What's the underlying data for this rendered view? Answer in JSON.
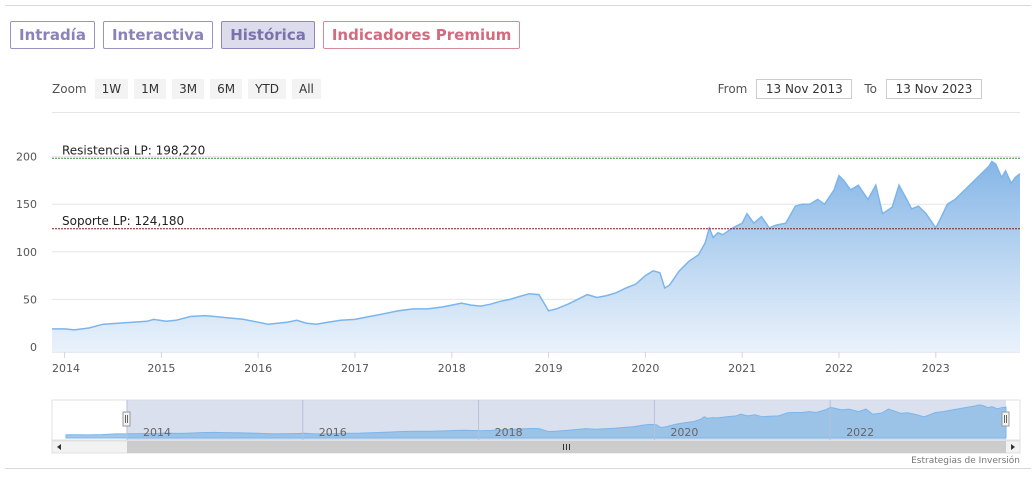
{
  "tabs": [
    {
      "label": "Intradía",
      "active": false
    },
    {
      "label": "Interactiva",
      "active": false
    },
    {
      "label": "Histórica",
      "active": true
    },
    {
      "label": "Indicadores Premium",
      "active": false
    }
  ],
  "zoom": {
    "label": "Zoom",
    "buttons": [
      "1W",
      "1M",
      "3M",
      "6M",
      "YTD",
      "All"
    ]
  },
  "range": {
    "from_label": "From",
    "from_value": "13 Nov 2013",
    "to_label": "To",
    "to_value": "13 Nov 2023"
  },
  "credits": "Estrategias de Inversión",
  "chart_data": {
    "type": "area",
    "x_start": 2013.87,
    "x_end": 2023.87,
    "ylim": [
      0,
      205
    ],
    "yticks": [
      0,
      50,
      100,
      150,
      200
    ],
    "xticks": [
      2014,
      2015,
      2016,
      2017,
      2018,
      2019,
      2020,
      2021,
      2022,
      2023
    ],
    "navigator_ticks": [
      2014,
      2016,
      2018,
      2020,
      2022
    ],
    "grid": true,
    "series": [
      {
        "x": [
          2013.87,
          2014.0,
          2014.1,
          2014.25,
          2014.4,
          2014.55,
          2014.7,
          2014.85,
          2014.92,
          2015.05,
          2015.15,
          2015.3,
          2015.45,
          2015.55,
          2015.65,
          2015.75,
          2015.85,
          2016.0,
          2016.1,
          2016.2,
          2016.3,
          2016.4,
          2016.5,
          2016.6,
          2016.72,
          2016.85,
          2017.0,
          2017.15,
          2017.3,
          2017.45,
          2017.6,
          2017.75,
          2017.9,
          2018.0,
          2018.1,
          2018.2,
          2018.3,
          2018.4,
          2018.5,
          2018.6,
          2018.7,
          2018.8,
          2018.9,
          2019.0,
          2019.08,
          2019.2,
          2019.3,
          2019.4,
          2019.5,
          2019.6,
          2019.7,
          2019.8,
          2019.9,
          2020.0,
          2020.08,
          2020.15,
          2020.2,
          2020.25,
          2020.35,
          2020.45,
          2020.55,
          2020.62,
          2020.66,
          2020.7,
          2020.75,
          2020.8,
          2020.9,
          2021.0,
          2021.05,
          2021.12,
          2021.2,
          2021.28,
          2021.35,
          2021.45,
          2021.55,
          2021.62,
          2021.7,
          2021.78,
          2021.85,
          2021.95,
          2022.0,
          2022.05,
          2022.12,
          2022.2,
          2022.3,
          2022.38,
          2022.45,
          2022.55,
          2022.62,
          2022.7,
          2022.75,
          2022.82,
          2022.9,
          2023.0,
          2023.05,
          2023.12,
          2023.2,
          2023.3,
          2023.4,
          2023.5,
          2023.55,
          2023.58,
          2023.62,
          2023.68,
          2023.72,
          2023.78,
          2023.82,
          2023.87
        ],
        "y": [
          19,
          19,
          18,
          20,
          24,
          25,
          26,
          27,
          29,
          27,
          28,
          32,
          33,
          32,
          31,
          30,
          29,
          26,
          24,
          25,
          26,
          28,
          25,
          24,
          26,
          28,
          29,
          32,
          35,
          38,
          40,
          40,
          42,
          44,
          46,
          44,
          43,
          45,
          48,
          50,
          53,
          56,
          55,
          38,
          40,
          45,
          50,
          55,
          52,
          54,
          57,
          62,
          66,
          75,
          80,
          78,
          62,
          65,
          80,
          90,
          97,
          110,
          125,
          115,
          120,
          118,
          125,
          130,
          140,
          130,
          137,
          125,
          128,
          130,
          148,
          150,
          150,
          155,
          150,
          165,
          180,
          175,
          165,
          170,
          155,
          170,
          140,
          147,
          170,
          155,
          145,
          148,
          140,
          125,
          135,
          150,
          155,
          165,
          175,
          185,
          190,
          195,
          192,
          178,
          185,
          172,
          178,
          182
        ]
      }
    ],
    "reference_lines": [
      {
        "label": "Resistencia LP: 198,220",
        "value": 198.22,
        "color": "#3a8f3a"
      },
      {
        "label": "Soporte LP: 124,180",
        "value": 124.18,
        "color": "#8a1c1c"
      }
    ]
  }
}
